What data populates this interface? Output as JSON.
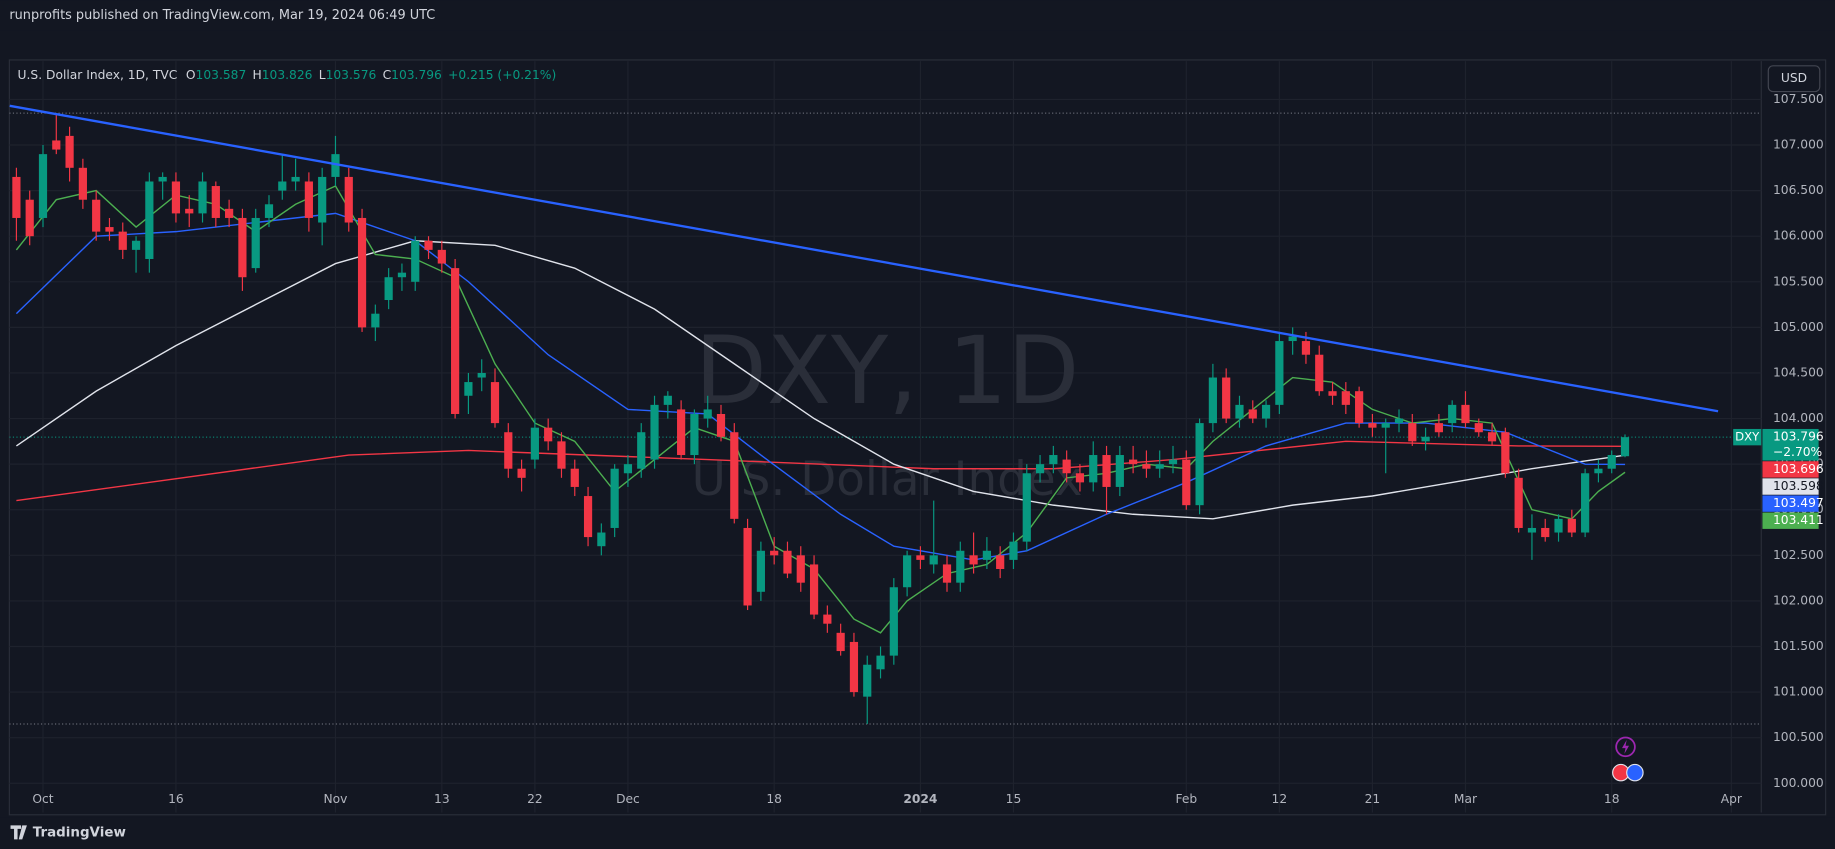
{
  "header": "runprofits published on TradingView.com, Mar 19, 2024 06:49 UTC",
  "footer_brand": "TradingView",
  "currency_button": "USD",
  "chart_data": {
    "type": "candlestick",
    "symbol": "U.S. Dollar Index, 1D, TVC",
    "legend_labels": [
      "O",
      "H",
      "L",
      "C"
    ],
    "change_text": "+0.215 (+0.21%)",
    "watermark_title": "DXY, 1D",
    "watermark_subtitle": "U.S. Dollar Index",
    "price_tag": "DXY",
    "price_change": "−2.70%",
    "up_color": "#089981",
    "down_color": "#f23645",
    "grid": true,
    "xlim": [
      -0.53,
      131.25
    ],
    "xticks": [
      {
        "value": 2,
        "label": "Oct"
      },
      {
        "value": 12,
        "label": "16"
      },
      {
        "value": 24,
        "label": "Nov"
      },
      {
        "value": 32,
        "label": "13"
      },
      {
        "value": 39,
        "label": "22"
      },
      {
        "value": 46,
        "label": "Dec"
      },
      {
        "value": 57,
        "label": "18"
      },
      {
        "value": 68,
        "label": "2024"
      },
      {
        "value": 75,
        "label": "15"
      },
      {
        "value": 88,
        "label": "Feb"
      },
      {
        "value": 95,
        "label": "12"
      },
      {
        "value": 102,
        "label": "21"
      },
      {
        "value": 109,
        "label": "Mar"
      },
      {
        "value": 120,
        "label": "18"
      },
      {
        "value": 129,
        "label": "Apr"
      }
    ],
    "ylim": [
      99.68,
      107.92
    ],
    "yticks": [
      {
        "value": 100,
        "label": "100.000"
      },
      {
        "value": 100.5,
        "label": "100.500"
      },
      {
        "value": 101,
        "label": "101.000"
      },
      {
        "value": 101.5,
        "label": "101.500"
      },
      {
        "value": 102,
        "label": "102.000"
      },
      {
        "value": 102.5,
        "label": "102.500"
      },
      {
        "value": 103,
        "label": "103.000"
      },
      {
        "value": 103.5,
        "label": "103.500"
      },
      {
        "value": 104,
        "label": "104.000"
      },
      {
        "value": 104.5,
        "label": "104.500"
      },
      {
        "value": 105,
        "label": "105.000"
      },
      {
        "value": 105.5,
        "label": "105.500"
      },
      {
        "value": 106,
        "label": "106.000"
      },
      {
        "value": 106.5,
        "label": "106.500"
      },
      {
        "value": 107,
        "label": "107.000"
      },
      {
        "value": 107.5,
        "label": "107.500"
      }
    ],
    "ohlc": [
      [
        106.65,
        106.75,
        105.95,
        106.2
      ],
      [
        106.4,
        106.5,
        105.9,
        106.0
      ],
      [
        106.2,
        107.0,
        106.1,
        106.9
      ],
      [
        107.05,
        107.35,
        106.9,
        106.95
      ],
      [
        107.1,
        107.2,
        106.6,
        106.75
      ],
      [
        106.75,
        106.85,
        106.3,
        106.4
      ],
      [
        106.4,
        106.5,
        105.95,
        106.05
      ],
      [
        106.1,
        106.2,
        105.95,
        106.05
      ],
      [
        106.05,
        106.15,
        105.75,
        105.85
      ],
      [
        105.85,
        106.0,
        105.6,
        105.95
      ],
      [
        105.75,
        106.7,
        105.6,
        106.6
      ],
      [
        106.6,
        106.7,
        106.4,
        106.65
      ],
      [
        106.6,
        106.7,
        106.15,
        106.25
      ],
      [
        106.3,
        106.45,
        106.1,
        106.25
      ],
      [
        106.25,
        106.7,
        106.15,
        106.6
      ],
      [
        106.55,
        106.6,
        106.1,
        106.2
      ],
      [
        106.3,
        106.4,
        106.1,
        106.2
      ],
      [
        106.2,
        106.3,
        105.4,
        105.55
      ],
      [
        105.65,
        106.3,
        105.6,
        106.2
      ],
      [
        106.2,
        106.45,
        106.1,
        106.35
      ],
      [
        106.5,
        106.9,
        106.4,
        106.6
      ],
      [
        106.6,
        106.85,
        106.5,
        106.65
      ],
      [
        106.6,
        106.7,
        106.05,
        106.2
      ],
      [
        106.15,
        106.75,
        105.9,
        106.65
      ],
      [
        106.65,
        107.1,
        106.55,
        106.9
      ],
      [
        106.65,
        106.75,
        106.05,
        106.15
      ],
      [
        106.2,
        106.3,
        104.95,
        105.0
      ],
      [
        105.0,
        105.25,
        104.85,
        105.15
      ],
      [
        105.3,
        105.65,
        105.2,
        105.55
      ],
      [
        105.55,
        105.7,
        105.4,
        105.6
      ],
      [
        105.5,
        106.0,
        105.4,
        105.95
      ],
      [
        105.95,
        106.0,
        105.75,
        105.85
      ],
      [
        105.85,
        105.95,
        105.6,
        105.7
      ],
      [
        105.65,
        105.75,
        104.0,
        104.05
      ],
      [
        104.25,
        104.5,
        104.05,
        104.4
      ],
      [
        104.45,
        104.65,
        104.3,
        104.5
      ],
      [
        104.4,
        104.55,
        103.9,
        103.95
      ],
      [
        103.85,
        103.95,
        103.35,
        103.45
      ],
      [
        103.45,
        103.55,
        103.2,
        103.35
      ],
      [
        103.55,
        104.0,
        103.45,
        103.9
      ],
      [
        103.9,
        104.0,
        103.65,
        103.75
      ],
      [
        103.75,
        103.85,
        103.35,
        103.45
      ],
      [
        103.45,
        103.55,
        103.15,
        103.25
      ],
      [
        103.15,
        103.25,
        102.6,
        102.7
      ],
      [
        102.6,
        102.85,
        102.5,
        102.75
      ],
      [
        102.8,
        103.5,
        102.7,
        103.45
      ],
      [
        103.4,
        103.6,
        103.25,
        103.5
      ],
      [
        103.45,
        103.95,
        103.35,
        103.85
      ],
      [
        103.55,
        104.25,
        103.45,
        104.15
      ],
      [
        104.15,
        104.3,
        104.0,
        104.25
      ],
      [
        104.1,
        104.2,
        103.55,
        103.6
      ],
      [
        103.6,
        104.1,
        103.5,
        104.05
      ],
      [
        104.0,
        104.25,
        103.9,
        104.1
      ],
      [
        104.05,
        104.15,
        103.75,
        103.8
      ],
      [
        103.85,
        103.95,
        102.85,
        102.9
      ],
      [
        102.8,
        102.9,
        101.9,
        101.95
      ],
      [
        102.1,
        102.65,
        102.0,
        102.55
      ],
      [
        102.55,
        102.7,
        102.4,
        102.5
      ],
      [
        102.55,
        102.65,
        102.25,
        102.3
      ],
      [
        102.5,
        102.6,
        102.1,
        102.2
      ],
      [
        102.4,
        102.5,
        101.8,
        101.85
      ],
      [
        101.85,
        101.95,
        101.65,
        101.75
      ],
      [
        101.65,
        101.75,
        101.4,
        101.45
      ],
      [
        101.55,
        101.65,
        100.95,
        101.0
      ],
      [
        100.95,
        101.4,
        100.65,
        101.3
      ],
      [
        101.25,
        101.5,
        101.15,
        101.4
      ],
      [
        101.4,
        102.25,
        101.3,
        102.15
      ],
      [
        102.15,
        102.55,
        102.05,
        102.5
      ],
      [
        102.5,
        102.6,
        102.35,
        102.45
      ],
      [
        102.4,
        103.1,
        102.3,
        102.5
      ],
      [
        102.4,
        102.5,
        102.1,
        102.2
      ],
      [
        102.2,
        102.65,
        102.1,
        102.55
      ],
      [
        102.5,
        102.75,
        102.3,
        102.4
      ],
      [
        102.45,
        102.7,
        102.35,
        102.55
      ],
      [
        102.5,
        102.6,
        102.25,
        102.35
      ],
      [
        102.45,
        102.75,
        102.35,
        102.65
      ],
      [
        102.65,
        103.5,
        102.55,
        103.4
      ],
      [
        103.4,
        103.6,
        103.3,
        103.5
      ],
      [
        103.5,
        103.7,
        103.4,
        103.6
      ],
      [
        103.55,
        103.65,
        103.3,
        103.4
      ],
      [
        103.4,
        103.5,
        103.2,
        103.3
      ],
      [
        103.3,
        103.75,
        103.2,
        103.6
      ],
      [
        103.6,
        103.7,
        102.95,
        103.25
      ],
      [
        103.25,
        103.7,
        103.15,
        103.6
      ],
      [
        103.55,
        103.7,
        103.4,
        103.5
      ],
      [
        103.5,
        103.65,
        103.35,
        103.45
      ],
      [
        103.45,
        103.65,
        103.35,
        103.5
      ],
      [
        103.5,
        103.7,
        103.4,
        103.55
      ],
      [
        103.55,
        103.65,
        103.0,
        103.05
      ],
      [
        103.05,
        104.0,
        102.95,
        103.95
      ],
      [
        103.95,
        104.6,
        103.85,
        104.45
      ],
      [
        104.45,
        104.55,
        103.95,
        104.0
      ],
      [
        104.0,
        104.25,
        103.9,
        104.15
      ],
      [
        104.1,
        104.2,
        103.95,
        104.0
      ],
      [
        104.0,
        104.2,
        103.9,
        104.15
      ],
      [
        104.15,
        104.95,
        104.05,
        104.85
      ],
      [
        104.85,
        105.0,
        104.7,
        104.9
      ],
      [
        104.85,
        104.95,
        104.6,
        104.7
      ],
      [
        104.7,
        104.8,
        104.25,
        104.3
      ],
      [
        104.3,
        104.4,
        104.15,
        104.25
      ],
      [
        104.3,
        104.4,
        104.05,
        104.15
      ],
      [
        104.3,
        104.35,
        103.9,
        103.95
      ],
      [
        103.95,
        104.05,
        103.8,
        103.9
      ],
      [
        103.9,
        104.0,
        103.4,
        103.95
      ],
      [
        103.95,
        104.1,
        103.85,
        104.0
      ],
      [
        103.95,
        104.05,
        103.7,
        103.75
      ],
      [
        103.75,
        103.9,
        103.65,
        103.8
      ],
      [
        103.95,
        104.05,
        103.8,
        103.85
      ],
      [
        103.95,
        104.2,
        103.85,
        104.15
      ],
      [
        104.15,
        104.3,
        103.9,
        103.95
      ],
      [
        103.95,
        104.0,
        103.8,
        103.85
      ],
      [
        103.85,
        103.95,
        103.7,
        103.75
      ],
      [
        103.85,
        103.9,
        103.35,
        103.4
      ],
      [
        103.35,
        103.45,
        102.75,
        102.8
      ],
      [
        102.75,
        102.95,
        102.45,
        102.8
      ],
      [
        102.8,
        102.9,
        102.65,
        102.7
      ],
      [
        102.75,
        102.95,
        102.65,
        102.9
      ],
      [
        102.9,
        103.0,
        102.7,
        102.75
      ],
      [
        102.75,
        103.45,
        102.7,
        103.4
      ],
      [
        103.4,
        103.55,
        103.3,
        103.45
      ],
      [
        103.45,
        103.65,
        103.4,
        103.6
      ],
      [
        103.587,
        103.826,
        103.576,
        103.796
      ]
    ],
    "series": [
      {
        "color": "#f23645",
        "x": [
          0,
          25,
          34,
          52,
          69,
          78,
          87,
          100,
          113,
          121
        ],
        "values": [
          103.1,
          103.6,
          103.65,
          103.55,
          103.45,
          103.45,
          103.55,
          103.75,
          103.7,
          103.696
        ]
      },
      {
        "color": "#e0e3eb",
        "x": [
          0,
          6,
          12,
          18,
          24,
          30,
          36,
          42,
          48,
          54,
          60,
          66,
          72,
          78,
          84,
          90,
          96,
          102,
          108,
          114,
          121
        ],
        "values": [
          103.7,
          104.3,
          104.8,
          105.25,
          105.7,
          105.95,
          105.9,
          105.65,
          105.2,
          104.6,
          104.0,
          103.5,
          103.2,
          103.05,
          102.95,
          102.9,
          103.05,
          103.15,
          103.3,
          103.45,
          103.598
        ]
      },
      {
        "color": "#2962ff",
        "x": [
          0,
          6,
          12,
          18,
          24,
          30,
          34,
          40,
          46,
          52,
          56,
          62,
          66,
          72,
          76,
          82,
          88,
          94,
          100,
          106,
          112,
          118,
          121
        ],
        "values": [
          105.15,
          106.0,
          106.05,
          106.15,
          106.25,
          105.95,
          105.5,
          104.7,
          104.1,
          104.05,
          103.6,
          102.95,
          102.6,
          102.45,
          102.55,
          102.95,
          103.3,
          103.7,
          103.95,
          103.95,
          103.85,
          103.5,
          103.497
        ]
      },
      {
        "color": "#4caf50",
        "x": [
          0,
          3,
          6,
          9,
          12,
          15,
          18,
          21,
          24,
          27,
          30,
          33,
          36,
          39,
          42,
          45,
          48,
          51,
          54,
          57,
          60,
          63,
          65,
          67,
          70,
          73,
          76,
          79,
          82,
          85,
          88,
          90,
          93,
          96,
          99,
          102,
          105,
          108,
          111,
          114,
          117,
          119,
          121
        ],
        "values": [
          105.85,
          106.4,
          106.5,
          106.1,
          106.45,
          106.35,
          106.05,
          106.35,
          106.55,
          105.8,
          105.75,
          105.55,
          104.6,
          103.95,
          103.75,
          103.2,
          103.55,
          103.9,
          103.75,
          102.6,
          102.35,
          101.8,
          101.65,
          102.0,
          102.3,
          102.4,
          102.75,
          103.35,
          103.4,
          103.5,
          103.45,
          103.75,
          104.1,
          104.45,
          104.4,
          104.1,
          103.95,
          104.0,
          103.95,
          103.0,
          102.9,
          103.2,
          103.411
        ]
      }
    ],
    "trendline": {
      "color": "#2962ff",
      "x": [
        -0.5,
        128
      ],
      "values": [
        107.43,
        104.08
      ]
    }
  }
}
